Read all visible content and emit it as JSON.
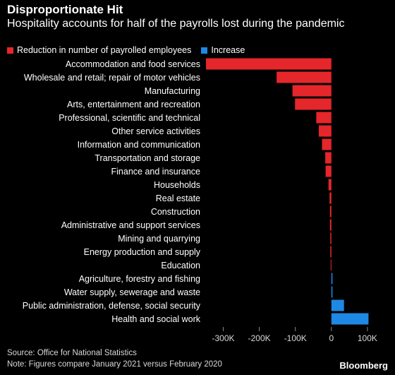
{
  "header": {
    "title": "Disproportionate Hit",
    "subtitle": "Hospitality accounts for half of the payrolls lost during the pandemic"
  },
  "legend": [
    {
      "label": "Reduction in number of payrolled employees",
      "color": "#e5262a"
    },
    {
      "label": "Increase",
      "color": "#1e88e5"
    }
  ],
  "chart_data": {
    "type": "bar",
    "orientation": "horizontal",
    "categories": [
      "Accommodation and food services",
      "Wholesale and retail; repair of motor vehicles",
      "Manufacturing",
      "Arts, entertainment and recreation",
      "Professional, scientific and technical",
      "Other service activities",
      "Information and communication",
      "Transportation and storage",
      "Finance and insurance",
      "Households",
      "Real estate",
      "Construction",
      "Administrative and support services",
      "Mining and quarrying",
      "Energy production and supply",
      "Education",
      "Agriculture, forestry and fishing",
      "Water supply, sewerage and waste",
      "Public administration, defense, social security",
      "Health and social work"
    ],
    "values": [
      -348000,
      -152000,
      -108000,
      -101000,
      -42000,
      -35000,
      -26000,
      -17000,
      -16000,
      -8000,
      -5000,
      -4000,
      -4000,
      -3000,
      -3000,
      -2000,
      3000,
      3000,
      35000,
      103000
    ],
    "xlim": [
      -350000,
      110000
    ],
    "ticks": [
      -300000,
      -200000,
      -100000,
      0,
      100000
    ],
    "tick_labels": [
      "-300K",
      "-200K",
      "-100K",
      "0",
      "100K"
    ],
    "colors": {
      "negative": "#e5262a",
      "positive": "#1e88e5"
    }
  },
  "footer": {
    "source": "Source: Office for National Statistics",
    "note": "Note: Figures compare January 2021 versus February 2020",
    "brand": "Bloomberg"
  }
}
